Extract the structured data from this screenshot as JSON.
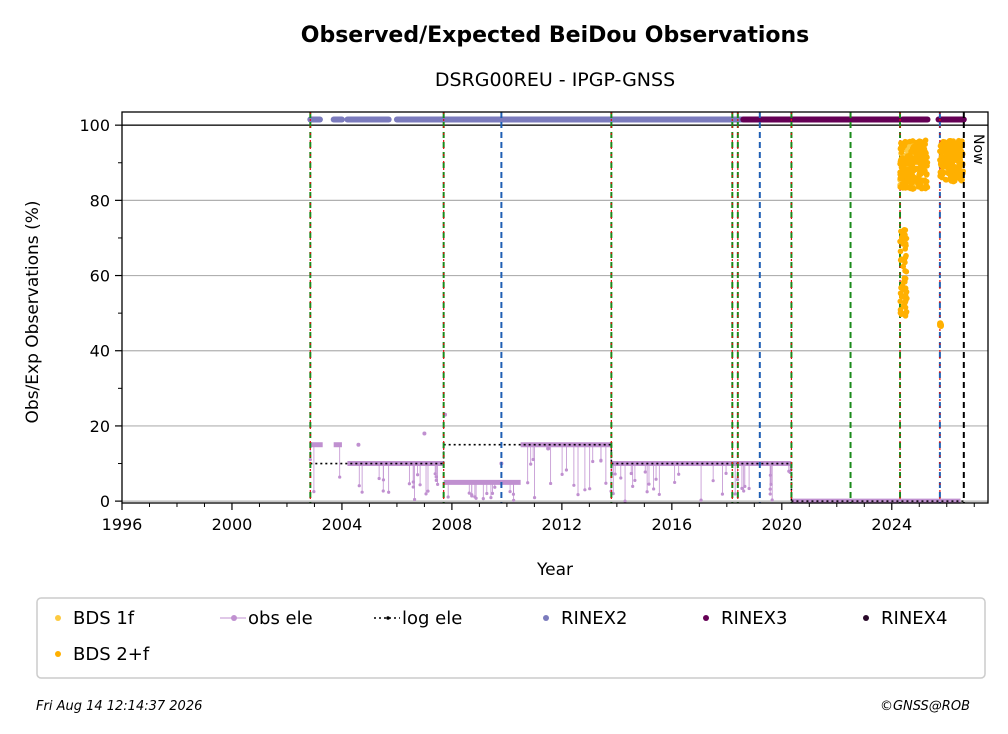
{
  "chart_data": {
    "type": "scatter",
    "title": "Observed/Expected BeiDou Observations",
    "subtitle": "DSRG00REU - IPGP-GNSS",
    "xlabel": "Year",
    "ylabel": "Obs/Exp Observations (%)",
    "xlim": [
      1996,
      2027.5
    ],
    "ylim": [
      -0.5,
      103.5
    ],
    "x_ticks": [
      "1996",
      "2000",
      "2004",
      "2008",
      "2012",
      "2016",
      "2020",
      "2024"
    ],
    "y_ticks": [
      "0",
      "20",
      "40",
      "60",
      "80",
      "100"
    ],
    "grid": "horizontal",
    "legend_position": "bottom",
    "legend": [
      {
        "label": "BDS 1f",
        "marker": "dot",
        "color": "#fdca40"
      },
      {
        "label": "obs ele",
        "marker": "line-dot",
        "color": "#c090d0"
      },
      {
        "label": "log ele",
        "marker": "dotted-line",
        "color": "#000000"
      },
      {
        "label": "RINEX2",
        "marker": "dot",
        "color": "#7b7bbd"
      },
      {
        "label": "RINEX3",
        "marker": "dot",
        "color": "#650055"
      },
      {
        "label": "RINEX4",
        "marker": "dot",
        "color": "#2a0a2a"
      },
      {
        "label": "BDS 2+f",
        "marker": "dot",
        "color": "#ffb000"
      }
    ],
    "now_label": "Now",
    "now_x": 2026.62,
    "event_lines": [
      {
        "x": 2002.85,
        "style": "green-red"
      },
      {
        "x": 2007.7,
        "style": "green-red"
      },
      {
        "x": 2009.8,
        "style": "blue"
      },
      {
        "x": 2013.8,
        "style": "green-red"
      },
      {
        "x": 2018.2,
        "style": "green-red"
      },
      {
        "x": 2018.4,
        "style": "green-red"
      },
      {
        "x": 2019.2,
        "style": "blue"
      },
      {
        "x": 2020.35,
        "style": "green-red"
      },
      {
        "x": 2022.5,
        "style": "green"
      },
      {
        "x": 2024.3,
        "style": "green-red"
      },
      {
        "x": 2025.75,
        "style": "blue-red"
      }
    ],
    "log_ele_steps": [
      {
        "x0": 2002.85,
        "x1": 2007.7,
        "y": 10
      },
      {
        "x0": 2007.7,
        "x1": 2013.8,
        "y": 15
      },
      {
        "x0": 2013.8,
        "x1": 2020.35,
        "y": 10
      },
      {
        "x0": 2020.35,
        "x1": 2026.62,
        "y": 0
      }
    ],
    "rinex_coverage": [
      {
        "series": "RINEX2",
        "x0": 2002.85,
        "x1": 2003.2,
        "y": 101.5
      },
      {
        "series": "RINEX2",
        "x0": 2003.7,
        "x1": 2004.0,
        "y": 101.5
      },
      {
        "series": "RINEX2",
        "x0": 2004.2,
        "x1": 2005.7,
        "y": 101.5
      },
      {
        "series": "RINEX2",
        "x0": 2006.0,
        "x1": 2018.6,
        "y": 101.5
      },
      {
        "series": "RINEX3",
        "x0": 2018.6,
        "x1": 2024.3,
        "y": 101.5
      },
      {
        "series": "RINEX3",
        "x0": 2024.4,
        "x1": 2025.3,
        "y": 101.5
      },
      {
        "series": "RINEX3",
        "x0": 2025.7,
        "x1": 2026.62,
        "y": 101.5
      }
    ],
    "obs_ele_segments": [
      {
        "x0": 2002.85,
        "x1": 2003.3,
        "y": 15
      },
      {
        "x0": 2003.7,
        "x1": 2004.0,
        "y": 15
      },
      {
        "x0": 2004.2,
        "x1": 2007.7,
        "y": 10
      },
      {
        "x0": 2007.7,
        "x1": 2010.5,
        "y": 5
      },
      {
        "x0": 2010.5,
        "x1": 2013.8,
        "y": 15
      },
      {
        "x0": 2013.8,
        "x1": 2020.35,
        "y": 10
      },
      {
        "x0": 2020.35,
        "x1": 2026.5,
        "y": 0
      }
    ],
    "bds_2f_clusters": [
      {
        "x0": 2024.3,
        "x1": 2024.55,
        "y_min": 49,
        "y_max": 73
      },
      {
        "x0": 2024.3,
        "x1": 2025.3,
        "y_min": 83,
        "y_max": 96
      },
      {
        "x0": 2025.75,
        "x1": 2025.8,
        "y_min": 46.5,
        "y_max": 47.5
      },
      {
        "x0": 2025.75,
        "x1": 2026.6,
        "y_min": 85,
        "y_max": 96
      }
    ],
    "bds_1f_cluster": {
      "x0": 2024.3,
      "x1": 2024.8,
      "y_min": 84,
      "y_max": 95
    }
  },
  "footer": {
    "timestamp": "Fri Aug 14 12:14:37 2026",
    "copyright": "©GNSS@ROB"
  }
}
